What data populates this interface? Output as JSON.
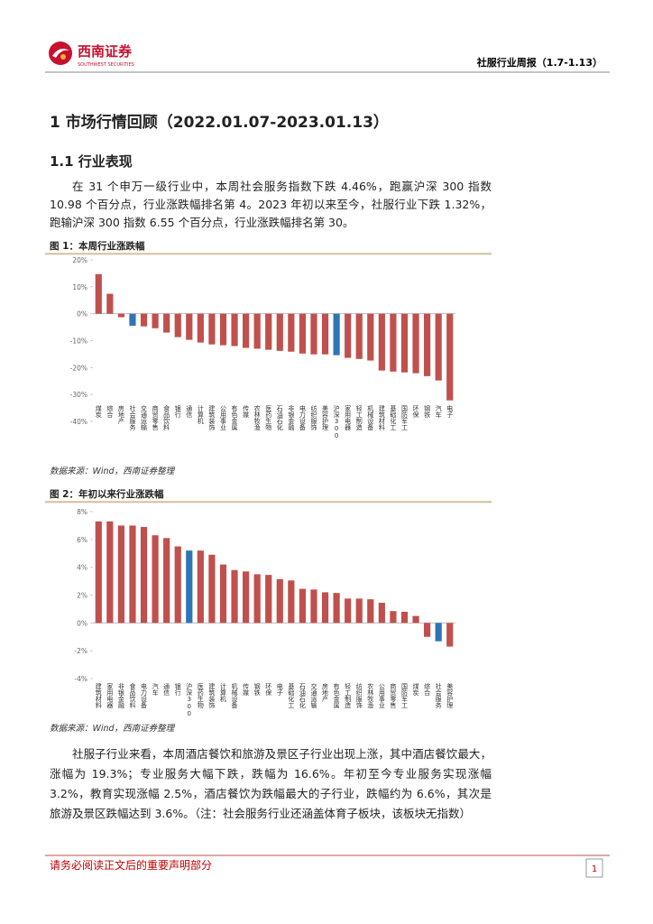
{
  "header": {
    "logo_cn": "西南证券",
    "logo_en": "SOUTHWEST SECURITIES",
    "report_title": "社服行业周报（1.7-1.13）"
  },
  "section": "1 市场行情回顾（2022.01.07-2023.01.13）",
  "subsection": "1.1 行业表现",
  "paragraphs": [
    "在 31 个申万一级行业中，本周社会服务指数下跌 4.46%，跑赢沪深 300 指数 10.98 个百分点，行业涨跌幅排名第 4。2023 年初以来至今，社服行业下跌 1.32%，跑输沪深 300 指数 6.55 个百分点，行业涨跌幅排名第 30。",
    "社服子行业来看，本周酒店餐饮和旅游及景区子行业出现上涨，其中酒店餐饮最大，涨幅为 19.3%；专业服务大幅下跌，跌幅为 16.6%。年初至今专业服务实现涨幅 3.2%，教育实现涨幅 2.5%，酒店餐饮为跌幅最大的子行业，跌幅约为 6.6%，其次是旅游及景区跌幅达到 3.6%。（注：社会服务行业还涵盖体育子板块，该板块无指数）"
  ],
  "chart_data": [
    {
      "type": "bar",
      "title": "图 1：本周行业涨跌幅",
      "source": "数据来源：Wind，西南证券整理",
      "categories": [
        "煤炭",
        "综合",
        "房地产",
        "社会服务",
        "交通运输",
        "商贸零售",
        "食品饮料",
        "银行",
        "通信",
        "计算机",
        "建筑装饰",
        "公用事业",
        "有色金属",
        "传媒",
        "农林牧渔",
        "医药生物",
        "石油石化",
        "非银金融",
        "电力设备",
        "纺织服饰",
        "美容护理",
        "沪深300",
        "家用电器",
        "轻工制造",
        "机械设备",
        "建筑材料",
        "基础化工",
        "国防军工",
        "环保",
        "钢铁",
        "汽车",
        "电子"
      ],
      "values": [
        14.7,
        7.4,
        -1.3,
        -4.46,
        -4.7,
        -5.4,
        -7,
        -8.7,
        -9.7,
        -10.7,
        -11.4,
        -11.7,
        -12,
        -12.7,
        -13,
        -13.4,
        -13.8,
        -14.1,
        -14.8,
        -15.1,
        -15.1,
        -15.4,
        -16.4,
        -16.8,
        -17.4,
        -21.1,
        -21.5,
        -21.8,
        -22.1,
        -23.2,
        -24.8,
        -32.2
      ],
      "colors": [
        "#c0504d",
        "#c0504d",
        "#c0504d",
        "#2e75b6",
        "#c0504d",
        "#c0504d",
        "#c0504d",
        "#c0504d",
        "#c0504d",
        "#c0504d",
        "#c0504d",
        "#c0504d",
        "#c0504d",
        "#c0504d",
        "#c0504d",
        "#c0504d",
        "#c0504d",
        "#c0504d",
        "#c0504d",
        "#c0504d",
        "#c0504d",
        "#2e75b6",
        "#c0504d",
        "#c0504d",
        "#c0504d",
        "#c0504d",
        "#c0504d",
        "#c0504d",
        "#c0504d",
        "#c0504d",
        "#c0504d",
        "#c0504d"
      ],
      "ylim": [
        -40,
        20
      ],
      "yticks": [
        {
          "value": 20,
          "label": "20%"
        },
        {
          "value": 10,
          "label": "10%"
        },
        {
          "value": 0,
          "label": "0%"
        },
        {
          "value": -10,
          "label": "-10%"
        },
        {
          "value": -20,
          "label": "-20%"
        },
        {
          "value": -30,
          "label": "-30%"
        },
        {
          "value": -40,
          "label": "-40%"
        }
      ]
    },
    {
      "type": "bar",
      "title": "图 2：年初以来行业涨跌幅",
      "source": "数据来源：Wind，西南证券整理",
      "categories": [
        "建筑材料",
        "家用电器",
        "非银金融",
        "食品饮料",
        "电力设备",
        "汽车",
        "通信",
        "银行",
        "沪深300",
        "医药生物",
        "建筑装饰",
        "计算机",
        "机械设备",
        "传媒",
        "钢铁",
        "环保",
        "电子",
        "基础化工",
        "石油石化",
        "交通运输",
        "房地产",
        "有色金属",
        "轻工制造",
        "纺织服饰",
        "农林牧渔",
        "公用事业",
        "商贸零售",
        "国防军工",
        "煤炭",
        "综合",
        "社会服务",
        "美容护理"
      ],
      "values": [
        7.3,
        7.3,
        7.0,
        7.0,
        6.9,
        6.3,
        6.1,
        5.5,
        5.2,
        5.2,
        4.9,
        4.2,
        3.8,
        3.7,
        3.5,
        3.45,
        3.15,
        3.05,
        2.45,
        2.4,
        2.2,
        2.15,
        1.75,
        1.75,
        1.7,
        1.45,
        0.85,
        0.8,
        0.5,
        -1.0,
        -1.32,
        -1.7
      ],
      "colors": [
        "#c0504d",
        "#c0504d",
        "#c0504d",
        "#c0504d",
        "#c0504d",
        "#c0504d",
        "#c0504d",
        "#c0504d",
        "#2e75b6",
        "#c0504d",
        "#c0504d",
        "#c0504d",
        "#c0504d",
        "#c0504d",
        "#c0504d",
        "#c0504d",
        "#c0504d",
        "#c0504d",
        "#c0504d",
        "#c0504d",
        "#c0504d",
        "#c0504d",
        "#c0504d",
        "#c0504d",
        "#c0504d",
        "#c0504d",
        "#c0504d",
        "#c0504d",
        "#c0504d",
        "#c0504d",
        "#2e75b6",
        "#c0504d"
      ],
      "ylim": [
        -4,
        8
      ],
      "yticks": [
        {
          "value": 8,
          "label": "8%"
        },
        {
          "value": 6,
          "label": "6%"
        },
        {
          "value": 4,
          "label": "4%"
        },
        {
          "value": 2,
          "label": "2%"
        },
        {
          "value": 0,
          "label": "0%"
        },
        {
          "value": -2,
          "label": "-2%"
        },
        {
          "value": -4,
          "label": "-4%"
        }
      ]
    }
  ],
  "footer": {
    "disclaimer": "请务必阅读正文后的重要声明部分",
    "page_number": 1
  }
}
